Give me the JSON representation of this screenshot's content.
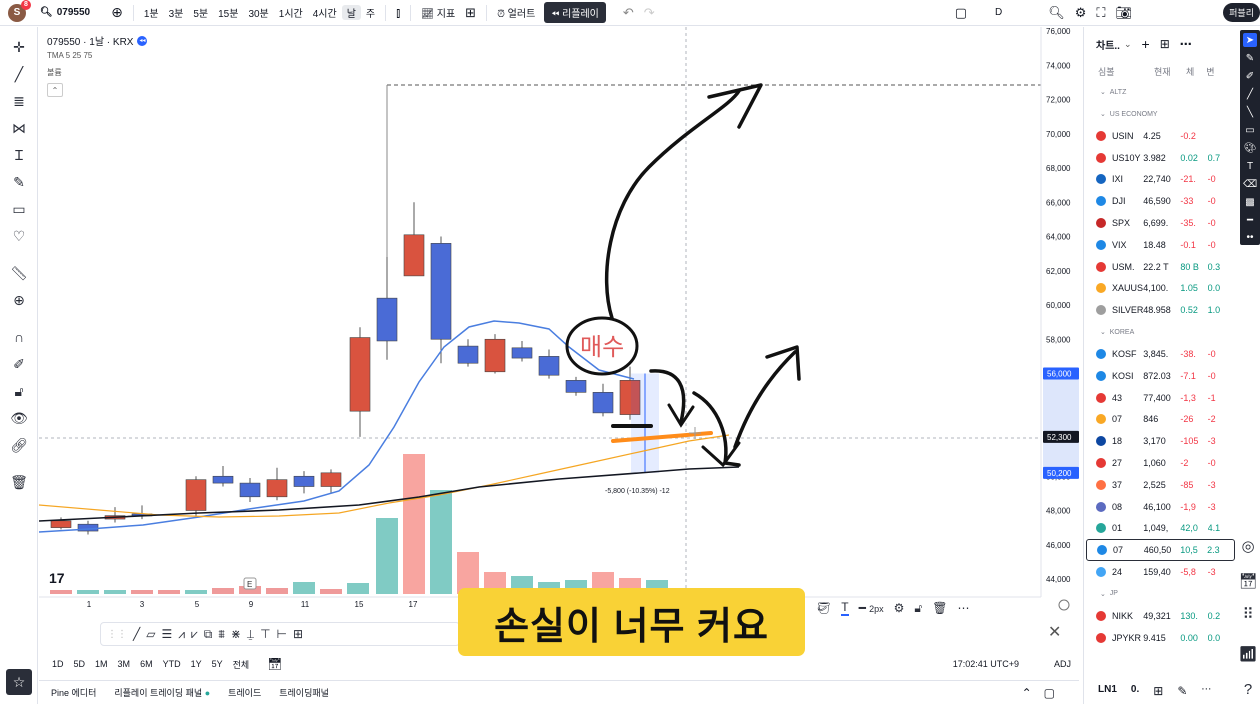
{
  "topbar": {
    "logo_letter": "S",
    "notif_count": "8",
    "symbol": "079550",
    "intervals": [
      "1분",
      "3분",
      "5분",
      "15분",
      "30분",
      "1시간",
      "4시간",
      "날",
      "주"
    ],
    "active_interval": "날",
    "indicators_label": "지표",
    "alerts_label": "얼러트",
    "replay_label": "리플레이",
    "timeframe_letter": "D",
    "publish_label": "퍼블리"
  },
  "legend": {
    "title": "079550 · 1날 · KRX",
    "tma": "TMA 5 25 75",
    "volume": "볼륨"
  },
  "chart": {
    "price_axis": [
      "76,000",
      "74,000",
      "72,000",
      "70,000",
      "68,000",
      "66,000",
      "64,000",
      "62,000",
      "60,000",
      "58,000",
      "56,000",
      "54,000",
      "52,000",
      "50,000",
      "48,000",
      "46,000",
      "44,000"
    ],
    "date_axis": [
      "1",
      "3",
      "5",
      "9",
      "11",
      "15",
      "17",
      "19"
    ],
    "highlight_high": "56,000",
    "current_price": "52,300",
    "highlight_low": "50,200",
    "measure_label": "-5,800 (-10.35%) -12",
    "annotation_text": "매수",
    "earnings_marker": "E",
    "logo_text": "17"
  },
  "drawbar": {
    "width_label": "2px"
  },
  "caption": "손실이 너무 커요",
  "timeframes": [
    "1D",
    "5D",
    "1M",
    "3M",
    "6M",
    "YTD",
    "1Y",
    "5Y",
    "전체"
  ],
  "clock": "17:02:41 UTC+9",
  "adj": "ADJ",
  "bottom_tabs": [
    "Pine 에디터",
    "리플레이 트레이딩 패널",
    "트레이드",
    "트레이딩패널"
  ],
  "watchlist": {
    "title": "차트..",
    "columns": [
      "심볼",
      "현재",
      "체",
      "변"
    ],
    "sections": [
      "ALTZ",
      "US ECONOMY",
      "KOREA",
      "JP"
    ],
    "us_rows": [
      {
        "sym": "USIN",
        "price": "4.25",
        "chg": "-0.2",
        "pct": "",
        "color": "#e53935"
      },
      {
        "sym": "US10Y",
        "price": "3.982",
        "chg": "0.02",
        "pct": "0.7",
        "color": "#e53935"
      },
      {
        "sym": "IXI",
        "price": "22,740",
        "chg": "-21.",
        "pct": "-0",
        "color": "#1565c0"
      },
      {
        "sym": "DJI",
        "price": "46,590",
        "chg": "-33",
        "pct": "-0",
        "color": "#1e88e5"
      },
      {
        "sym": "SPX",
        "price": "6,699.",
        "chg": "-35.",
        "pct": "-0",
        "color": "#c62828"
      },
      {
        "sym": "VIX",
        "price": "18.48",
        "chg": "-0.1",
        "pct": "-0",
        "color": "#1e88e5"
      },
      {
        "sym": "USM.",
        "price": "22.2 T",
        "chg": "80 B",
        "pct": "0.3",
        "color": "#e53935"
      },
      {
        "sym": "XAUUS",
        "price": "4,100.",
        "chg": "1.05",
        "pct": "0.0",
        "color": "#f9a825"
      },
      {
        "sym": "SILVER",
        "price": "48.958",
        "chg": "0.52",
        "pct": "1.0",
        "color": "#9e9e9e"
      }
    ],
    "kr_rows": [
      {
        "sym": "KOSF",
        "price": "3,845.",
        "chg": "-38.",
        "pct": "-0",
        "color": "#1e88e5"
      },
      {
        "sym": "KOSI",
        "price": "872.03",
        "chg": "-7.1",
        "pct": "-0",
        "color": "#1e88e5"
      },
      {
        "sym": "43",
        "price": "77,400",
        "chg": "-1,3",
        "pct": "-1",
        "color": "#e53935"
      },
      {
        "sym": "07",
        "price": "846",
        "chg": "-26",
        "pct": "-2",
        "color": "#f9a825"
      },
      {
        "sym": "18",
        "price": "3,170",
        "chg": "-105",
        "pct": "-3",
        "color": "#0d47a1"
      },
      {
        "sym": "27",
        "price": "1,060",
        "chg": "-2",
        "pct": "-0",
        "color": "#e53935"
      },
      {
        "sym": "37",
        "price": "2,525",
        "chg": "-85",
        "pct": "-3",
        "color": "#ff7043"
      },
      {
        "sym": "08",
        "price": "46,100",
        "chg": "-1,9",
        "pct": "-3",
        "color": "#5c6bc0"
      },
      {
        "sym": "01",
        "price": "1,049,",
        "chg": "42,0",
        "pct": "4.1",
        "color": "#26a69a"
      },
      {
        "sym": "07",
        "price": "460,50",
        "chg": "10,5",
        "pct": "2.3",
        "color": "#1e88e5"
      },
      {
        "sym": "24",
        "price": "159,40",
        "chg": "-5,8",
        "pct": "-3",
        "color": "#42a5f5"
      }
    ],
    "jp_rows": [
      {
        "sym": "NIKK",
        "price": "49,321",
        "chg": "130.",
        "pct": "0.2",
        "color": "#e53935"
      },
      {
        "sym": "JPYKR",
        "price": "9.415",
        "chg": "0.00",
        "pct": "0.0",
        "color": "#e53935"
      }
    ],
    "footer_sym": "LN1",
    "footer_val": "0."
  }
}
